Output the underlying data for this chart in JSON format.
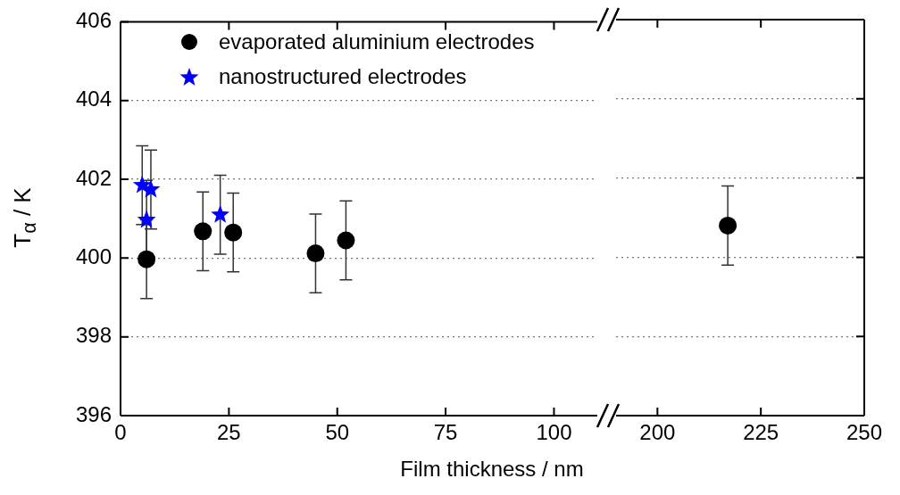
{
  "chart_data": [
    {
      "type": "scatter",
      "xlabel": "Film thickness / nm",
      "ylabel": "T$_{α}$ / K",
      "xlim": [
        0,
        110
      ],
      "xticks": [
        0,
        25,
        50,
        75,
        100
      ],
      "ylim": [
        396,
        406
      ],
      "yticks": [
        396,
        398,
        400,
        402,
        404,
        406
      ],
      "grid": "y",
      "legend": "top",
      "series": [
        {
          "name": "evaporated aluminium electrodes",
          "color": "#000000",
          "marker": "circle",
          "x": [
            6,
            19,
            26,
            45,
            52
          ],
          "values": [
            399.97,
            400.68,
            400.65,
            400.12,
            400.45
          ],
          "errors": [
            1,
            1,
            1,
            1,
            1
          ]
        },
        {
          "name": "nanostructured electrodes",
          "color": "#0000ff",
          "marker": "star",
          "x": [
            5,
            6,
            7,
            23
          ],
          "values": [
            401.85,
            400.97,
            401.74,
            401.1
          ],
          "errors": [
            1,
            1,
            1,
            1
          ]
        }
      ]
    },
    {
      "type": "scatter",
      "xlim": [
        190,
        250
      ],
      "xticks": [
        200,
        225,
        250
      ],
      "ylim": [
        396,
        406
      ],
      "yticks": [
        396,
        398,
        400,
        402,
        404,
        406
      ],
      "grid": "y",
      "tick_labels": "x",
      "series": [
        {
          "color": "#000000",
          "marker": "circle",
          "x": [
            217
          ],
          "values": [
            400.8
          ],
          "errors": [
            1
          ]
        }
      ]
    }
  ]
}
